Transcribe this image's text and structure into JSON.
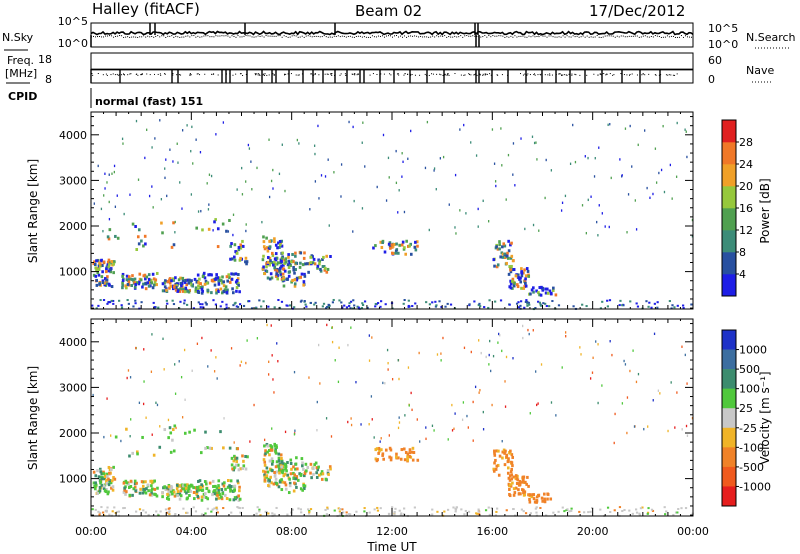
{
  "header": {
    "station": "Halley (fitACF)",
    "beam": "Beam 02",
    "date": "17/Dec/2012"
  },
  "strip_labels": {
    "nsky": "N.Sky",
    "nsearch": "N.Search",
    "freq_line1": "Freq.",
    "freq_line2": "[MHz]",
    "nave": "Nave",
    "cpid": "CPID",
    "cpid_value": "normal (fast) 151"
  },
  "strip_ticks": {
    "noise_left": [
      "10^5",
      "10^0"
    ],
    "noise_right": [
      "10^5",
      "10^0"
    ],
    "freq_left": [
      "18",
      "8"
    ],
    "nave_right": [
      "60",
      "0"
    ]
  },
  "chart_data": [
    {
      "type": "heatmap",
      "name": "power",
      "ylabel": "Slant Range [km]",
      "xlabel": "",
      "xlim": [
        0,
        24
      ],
      "ylim": [
        180,
        4500
      ],
      "yticks": [
        1000,
        2000,
        3000,
        4000
      ],
      "xticks": [
        "00:00",
        "04:00",
        "08:00",
        "12:00",
        "16:00",
        "20:00",
        "00:00"
      ],
      "colorbar": {
        "label": "Power [dB]",
        "ticks": [
          "4",
          "8",
          "12",
          "16",
          "20",
          "24",
          "28"
        ],
        "colors": [
          "#1e1ee6",
          "#2850a0",
          "#3c8c78",
          "#50a050",
          "#96c83c",
          "#f0a028",
          "#f07828",
          "#e02020"
        ]
      }
    },
    {
      "type": "heatmap",
      "name": "velocity",
      "ylabel": "Slant Range [km]",
      "xlabel": "Time UT",
      "xlim": [
        0,
        24
      ],
      "ylim": [
        180,
        4500
      ],
      "yticks": [
        1000,
        2000,
        3000,
        4000
      ],
      "xticks": [
        "00:00",
        "04:00",
        "08:00",
        "12:00",
        "16:00",
        "20:00",
        "00:00"
      ],
      "colorbar": {
        "label": "Velocity [m s⁻¹]",
        "ticks": [
          "1000",
          "500",
          "100",
          "25",
          "-25",
          "-100",
          "-500",
          "-1000"
        ],
        "colors": [
          "#1e32c8",
          "#3c6ea0",
          "#3c8c6e",
          "#50c83c",
          "#c8c8c8",
          "#f0b428",
          "#f08228",
          "#f05a1e",
          "#e61e1e"
        ]
      }
    }
  ]
}
